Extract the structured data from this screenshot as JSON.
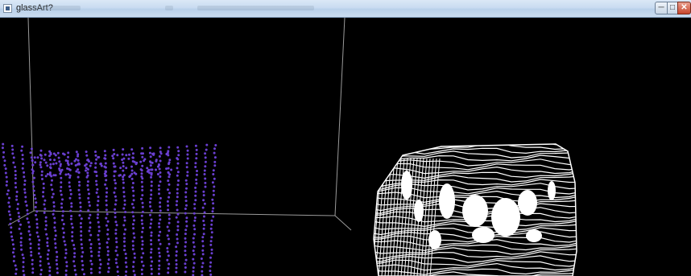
{
  "window": {
    "title": "glassArt?",
    "controls": {
      "minimize": "─",
      "maximize": "□",
      "close": "✕"
    }
  },
  "colors": {
    "background": "#000000",
    "axes": "#9a9a9a",
    "particles": "#6a3fd1",
    "mesh": "#ffffff"
  },
  "scene": {
    "left_object": "point-cloud-cube",
    "right_object": "glass-mesh-contours"
  }
}
